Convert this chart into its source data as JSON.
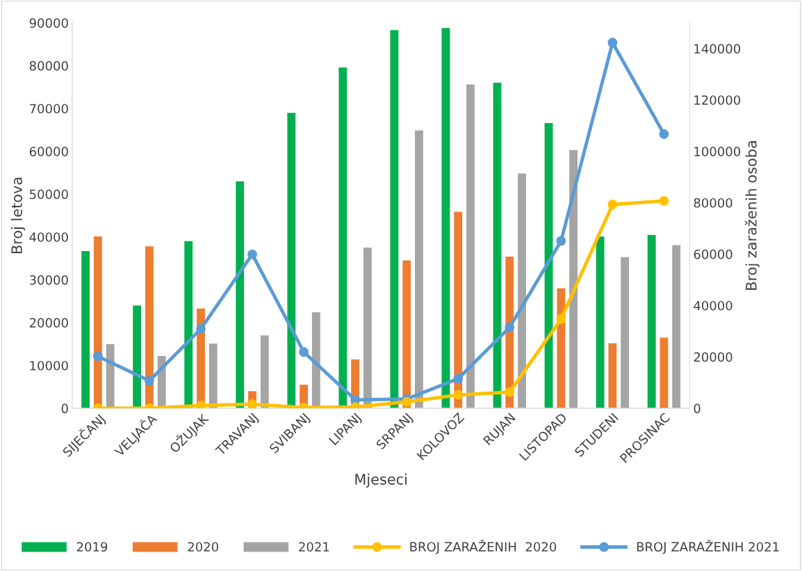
{
  "chart_data": {
    "type": "bar",
    "xlabel": "Mjeseci",
    "ylabel": "Broj letova",
    "y2label": "Broj zaraženih osoba",
    "categories": [
      "SIJEČANJ",
      "VELJAČA",
      "OŽUJAK",
      "TRAVANJ",
      "SVIBANJ",
      "LIPANJ",
      "SRPANJ",
      "KOLOVOZ",
      "RUJAN",
      "LISTOPAD",
      "STUDENI",
      "PROSINAC"
    ],
    "series": [
      {
        "name": "2019",
        "color": "#00b050",
        "values": [
          36700,
          24000,
          39000,
          53000,
          69000,
          79600,
          88300,
          88800,
          76000,
          66600,
          40100,
          40500
        ]
      },
      {
        "name": "2020",
        "color": "#ed7d31",
        "values": [
          40100,
          37800,
          23300,
          4000,
          5500,
          11400,
          34500,
          45900,
          35400,
          28000,
          15200,
          16500
        ]
      },
      {
        "name": "2021",
        "color": "#a5a5a5",
        "values": [
          15000,
          12200,
          15100,
          17000,
          22400,
          37500,
          64900,
          75600,
          54800,
          60300,
          35300,
          38100
        ]
      },
      {
        "name": "BROJ ZARAŽENIH  2020",
        "type": "line",
        "axis": "y2",
        "color": "#ffc000",
        "values": [
          0,
          0,
          1100,
          1600,
          300,
          500,
          2500,
          5200,
          6300,
          34700,
          79300,
          80700
        ]
      },
      {
        "name": "BROJ ZARAŽENIH 2021",
        "type": "line",
        "axis": "y2",
        "color": "#5b9bd5",
        "values": [
          20200,
          10700,
          30900,
          59900,
          21900,
          3300,
          3600,
          11500,
          31500,
          65100,
          142300,
          106700
        ]
      }
    ],
    "ylim": [
      0,
      90000
    ],
    "yticks": [
      0,
      10000,
      20000,
      30000,
      40000,
      50000,
      60000,
      70000,
      80000,
      90000
    ],
    "y2lim": [
      0,
      150000
    ],
    "y2ticks": [
      0,
      20000,
      40000,
      60000,
      80000,
      100000,
      120000,
      140000
    ],
    "marker": "circle",
    "line_style": "solid",
    "grid": false,
    "legend": "bottom"
  }
}
